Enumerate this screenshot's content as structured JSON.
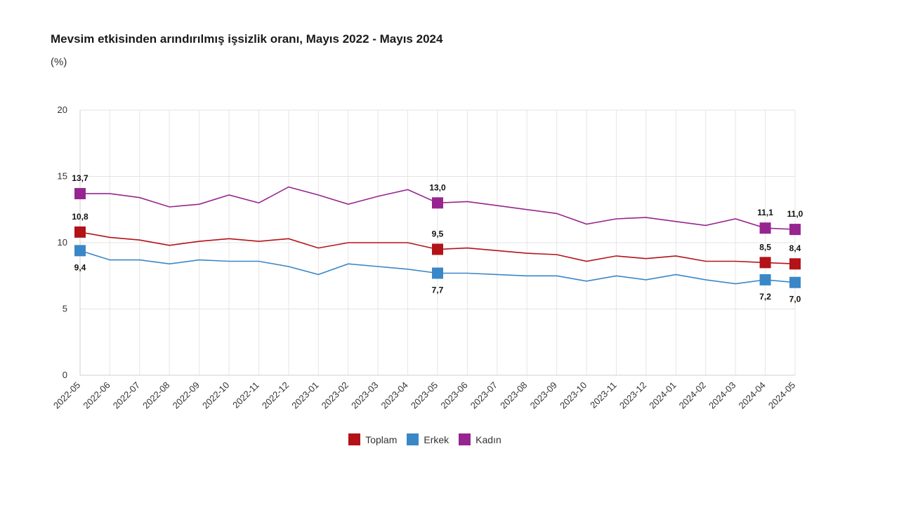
{
  "title": "Mevsim etkisinden arındırılmış işsizlik oranı, Mayıs 2022 - Mayıs 2024",
  "subtitle": "(%)",
  "chart_data": {
    "type": "line",
    "title": "Mevsim etkisinden arındırılmış işsizlik oranı, Mayıs 2022 - Mayıs 2024",
    "subtitle": "(%)",
    "categories": [
      "2022-05",
      "2022-06",
      "2022-07",
      "2022-08",
      "2022-09",
      "2022-10",
      "2022-11",
      "2022-12",
      "2023-01",
      "2023-02",
      "2023-03",
      "2023-04",
      "2023-05",
      "2023-06",
      "2023-07",
      "2023-08",
      "2023-09",
      "2023-10",
      "2023-11",
      "2023-12",
      "2024-01",
      "2024-02",
      "2024-03",
      "2024-04",
      "2024-05"
    ],
    "ylim": [
      0,
      20
    ],
    "yticks": [
      0,
      5,
      10,
      15,
      20
    ],
    "grid": true,
    "legend_position": "bottom",
    "series": [
      {
        "name": "Toplam",
        "color": "#b31217",
        "values": [
          10.8,
          10.4,
          10.2,
          9.8,
          10.1,
          10.3,
          10.1,
          10.3,
          9.6,
          10.0,
          10.0,
          10.0,
          9.5,
          9.6,
          9.4,
          9.2,
          9.1,
          8.6,
          9.0,
          8.8,
          9.0,
          8.6,
          8.6,
          8.5,
          8.4
        ],
        "labeled_points": [
          {
            "index": 0,
            "label": "10,8"
          },
          {
            "index": 12,
            "label": "9,5"
          },
          {
            "index": 23,
            "label": "8,5"
          },
          {
            "index": 24,
            "label": "8,4"
          }
        ]
      },
      {
        "name": "Erkek",
        "color": "#3a87c7",
        "values": [
          9.4,
          8.7,
          8.7,
          8.4,
          8.7,
          8.6,
          8.6,
          8.2,
          7.6,
          8.4,
          8.2,
          8.0,
          7.7,
          7.7,
          7.6,
          7.5,
          7.5,
          7.1,
          7.5,
          7.2,
          7.6,
          7.2,
          6.9,
          7.2,
          7.0
        ],
        "labeled_points": [
          {
            "index": 0,
            "label": "9,4"
          },
          {
            "index": 12,
            "label": "7,7"
          },
          {
            "index": 23,
            "label": "7,2"
          },
          {
            "index": 24,
            "label": "7,0"
          }
        ]
      },
      {
        "name": "Kadın",
        "color": "#972590",
        "values": [
          13.7,
          13.7,
          13.4,
          12.7,
          12.9,
          13.6,
          13.0,
          14.2,
          13.6,
          12.9,
          13.5,
          14.0,
          13.0,
          13.1,
          12.8,
          12.5,
          12.2,
          11.4,
          11.8,
          11.9,
          11.6,
          11.3,
          11.8,
          11.1,
          11.0
        ],
        "labeled_points": [
          {
            "index": 0,
            "label": "13,7"
          },
          {
            "index": 12,
            "label": "13,0"
          },
          {
            "index": 23,
            "label": "11,1"
          },
          {
            "index": 24,
            "label": "11,0"
          }
        ]
      }
    ]
  }
}
